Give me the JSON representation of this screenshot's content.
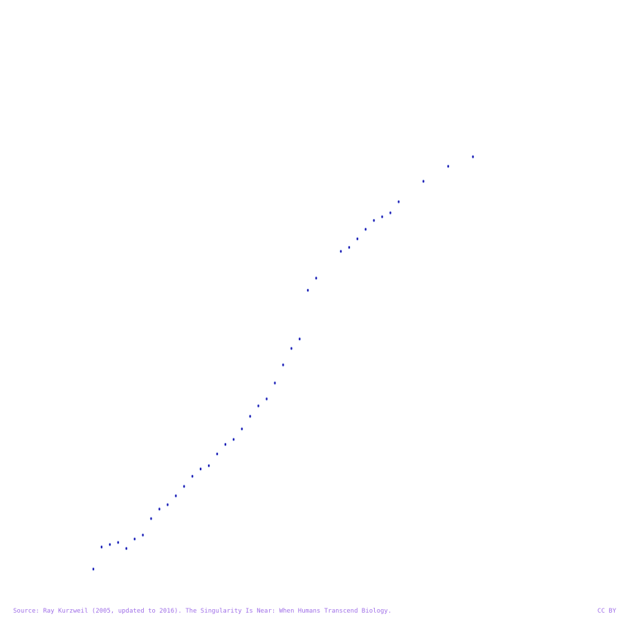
{
  "chart_data": {
    "type": "scatter",
    "title": "",
    "xlabel": "",
    "ylabel": "",
    "y_scale": "log",
    "grid": false,
    "legend": "none",
    "xlim": [
      1900,
      2017
    ],
    "ylim": [
      1e-06,
      100000000000.0
    ],
    "x": [
      1900,
      1902,
      1904,
      1906,
      1908,
      1910,
      1912,
      1914,
      1916,
      1918,
      1920,
      1922,
      1924,
      1926,
      1928,
      1930,
      1932,
      1934,
      1936,
      1938,
      1940,
      1942,
      1944,
      1946,
      1948,
      1950,
      1952,
      1954,
      1960,
      1962,
      1964,
      1966,
      1968,
      1970,
      1972,
      1974,
      1980,
      1986,
      1992
    ],
    "y": [
      1e-06,
      5e-06,
      6e-06,
      7e-06,
      4.5e-06,
      9e-06,
      1.2e-05,
      4e-05,
      8e-05,
      0.00011,
      0.00021,
      0.00042,
      0.00088,
      0.0015,
      0.0019,
      0.0045,
      0.009,
      0.013,
      0.028,
      0.07,
      0.15,
      0.25,
      0.8,
      3,
      10,
      20,
      700,
      1700,
      12000,
      16000,
      30000,
      60000,
      115000,
      150000,
      200000,
      450000,
      2000000,
      6000000,
      12000000
    ],
    "marker_color": "#1a0dab",
    "marker_highlight_color": "#8ab4f8"
  },
  "footer": {
    "source": "Source: Ray Kurzweil (2005, updated to 2016). The Singularity Is Near: When Humans Transcend Biology.",
    "license": "CC BY"
  }
}
